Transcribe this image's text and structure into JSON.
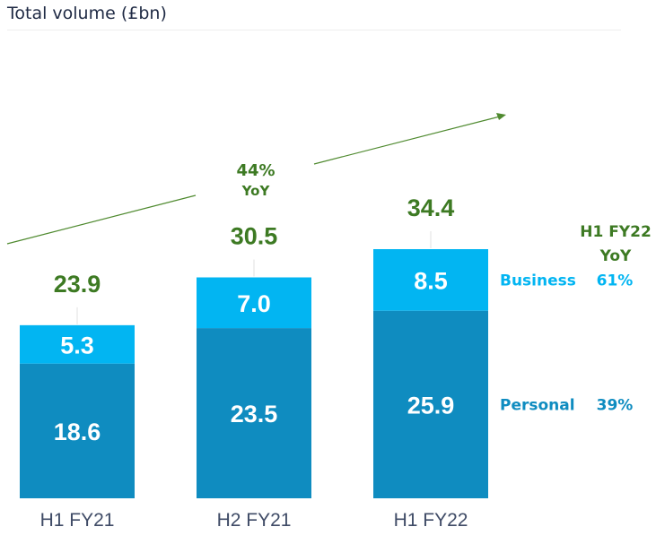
{
  "chart_data": {
    "type": "bar",
    "stacked": true,
    "title": "Total volume (£bn)",
    "categories": [
      "H1 FY21",
      "H2 FY21",
      "H1 FY22"
    ],
    "series": [
      {
        "name": "Personal",
        "values": [
          18.6,
          23.5,
          25.9
        ],
        "color": "#0f8cc0",
        "yoy_growth": "39%"
      },
      {
        "name": "Business",
        "values": [
          5.3,
          7.0,
          8.5
        ],
        "color": "#02b5f2",
        "yoy_growth": "61%"
      }
    ],
    "totals": [
      "23.9",
      "30.5",
      "34.4"
    ],
    "annotations": {
      "overall_growth_value": "44%",
      "overall_growth_label": "YoY",
      "legend_header_line1": "H1 FY22",
      "legend_header_line2": "YoY"
    },
    "xlabel": "",
    "ylabel": "",
    "ylim": [
      0,
      34.4
    ],
    "grid": false,
    "legend_position": "right",
    "colors": {
      "total_text": "#3d7a23",
      "axis_text": "#3f4b66",
      "title_text": "#1f2a44"
    }
  }
}
